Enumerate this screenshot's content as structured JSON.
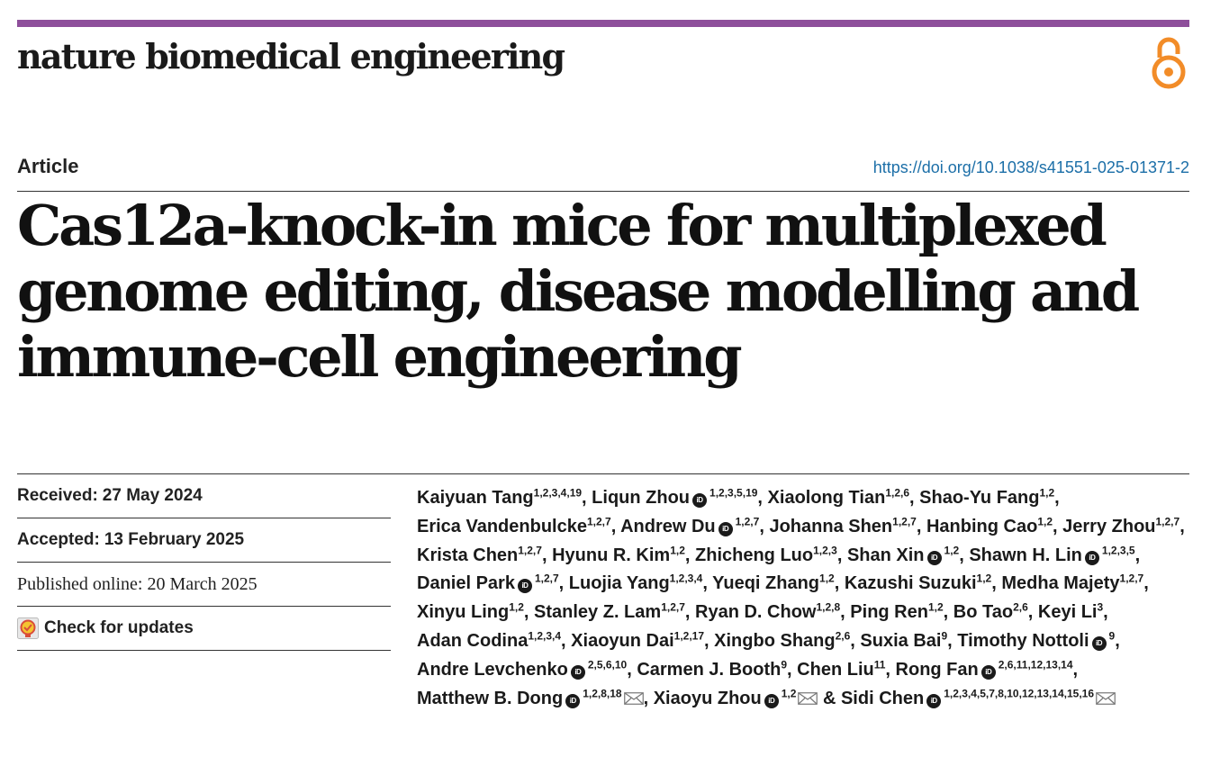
{
  "header": {
    "journal_name": "nature biomedical engineering",
    "brand_color": "#8e4f9b",
    "open_access_icon": "open-access-icon",
    "open_access_color": "#f28c28"
  },
  "article": {
    "type": "Article",
    "doi": "https://doi.org/10.1038/s41551-025-01371-2",
    "title": "Cas12a-knock-in mice for multiplexed genome editing, disease modelling and immune-cell engineering"
  },
  "dates": {
    "received_label": "Received:",
    "received": "27 May 2024",
    "accepted_label": "Accepted:",
    "accepted": "13 February 2025",
    "published_label": "Published online:",
    "published": "20 March 2025",
    "check_updates": "Check for updates"
  },
  "authors": [
    {
      "name": "Kaiyuan Tang",
      "aff": "1,2,3,4,19"
    },
    {
      "name": "Liqun Zhou",
      "orcid": true,
      "aff": "1,2,3,5,19"
    },
    {
      "name": "Xiaolong Tian",
      "aff": "1,2,6"
    },
    {
      "name": "Shao-Yu Fang",
      "aff": "1,2"
    },
    {
      "name": "Erica Vandenbulcke",
      "aff": "1,2,7"
    },
    {
      "name": "Andrew Du",
      "orcid": true,
      "aff": "1,2,7"
    },
    {
      "name": "Johanna Shen",
      "aff": "1,2,7"
    },
    {
      "name": "Hanbing Cao",
      "aff": "1,2"
    },
    {
      "name": "Jerry Zhou",
      "aff": "1,2,7"
    },
    {
      "name": "Krista Chen",
      "aff": "1,2,7"
    },
    {
      "name": "Hyunu R. Kim",
      "aff": "1,2"
    },
    {
      "name": "Zhicheng Luo",
      "aff": "1,2,3"
    },
    {
      "name": "Shan Xin",
      "orcid": true,
      "aff": "1,2"
    },
    {
      "name": "Shawn H. Lin",
      "orcid": true,
      "aff": "1,2,3,5"
    },
    {
      "name": "Daniel Park",
      "orcid": true,
      "aff": "1,2,7"
    },
    {
      "name": "Luojia Yang",
      "aff": "1,2,3,4"
    },
    {
      "name": "Yueqi Zhang",
      "aff": "1,2"
    },
    {
      "name": "Kazushi Suzuki",
      "aff": "1,2"
    },
    {
      "name": "Medha Majety",
      "aff": "1,2,7"
    },
    {
      "name": "Xinyu Ling",
      "aff": "1,2"
    },
    {
      "name": "Stanley Z. Lam",
      "aff": "1,2,7"
    },
    {
      "name": "Ryan D. Chow",
      "aff": "1,2,8"
    },
    {
      "name": "Ping Ren",
      "aff": "1,2"
    },
    {
      "name": "Bo Tao",
      "aff": "2,6"
    },
    {
      "name": "Keyi Li",
      "aff": "3"
    },
    {
      "name": "Adan Codina",
      "aff": "1,2,3,4"
    },
    {
      "name": "Xiaoyun Dai",
      "aff": "1,2,17"
    },
    {
      "name": "Xingbo Shang",
      "aff": "2,6"
    },
    {
      "name": "Suxia Bai",
      "aff": "9"
    },
    {
      "name": "Timothy Nottoli",
      "orcid": true,
      "aff": "9"
    },
    {
      "name": "Andre Levchenko",
      "orcid": true,
      "aff": "2,5,6,10"
    },
    {
      "name": "Carmen J. Booth",
      "aff": "9"
    },
    {
      "name": "Chen Liu",
      "aff": "11"
    },
    {
      "name": "Rong Fan",
      "orcid": true,
      "aff": "2,6,11,12,13,14"
    },
    {
      "name": "Matthew B. Dong",
      "orcid": true,
      "aff": "1,2,8,18",
      "mail": true
    },
    {
      "name": "Xiaoyu Zhou",
      "orcid": true,
      "aff": "1,2",
      "mail": true
    },
    {
      "name": "Sidi Chen",
      "orcid": true,
      "aff": "1,2,3,4,5,7,8,10,12,13,14,15,16",
      "mail": true
    }
  ],
  "author_layout": {
    "separator": ", ",
    "final_separator": " & ",
    "orcid_label": "iD",
    "orcid_icon": "orcid-icon",
    "mail_icon": "mail-icon"
  }
}
